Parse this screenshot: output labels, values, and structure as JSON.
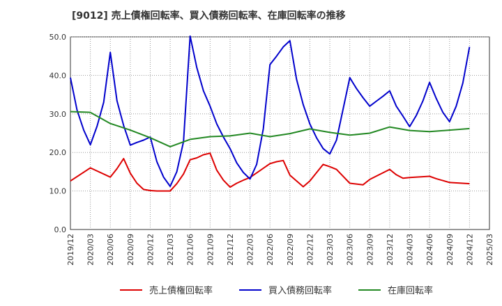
{
  "chart_data": {
    "type": "line",
    "title": "[9012]  売上債権回転率、買入債務回転率、在庫回転率の推移",
    "xlabel": "",
    "ylabel": "",
    "ylim": [
      0,
      50
    ],
    "yticks": [
      0,
      10,
      20,
      30,
      40,
      50
    ],
    "ytick_labels": [
      "0.0",
      "10.0",
      "20.0",
      "30.0",
      "40.0",
      "50.0"
    ],
    "xtick_labels": [
      "2019/12",
      "2020/03",
      "2020/06",
      "2020/09",
      "2020/12",
      "2021/03",
      "2021/06",
      "2021/09",
      "2021/12",
      "2022/03",
      "2022/06",
      "2022/09",
      "2022/12",
      "2023/03",
      "2023/06",
      "2023/09",
      "2023/12",
      "2024/03",
      "2024/06",
      "2024/09",
      "2024/12",
      "2025/03"
    ],
    "x_months_range": [
      0,
      63
    ],
    "grid": true,
    "legend_position": "bottom",
    "series": [
      {
        "name": "売上債権回転率",
        "color": "#dd0000",
        "x": [
          0,
          3,
          6,
          7,
          8,
          9,
          10,
          11,
          12,
          13,
          15,
          16,
          17,
          18,
          19,
          20,
          21,
          22,
          23,
          24,
          25,
          26,
          27,
          30,
          31,
          32,
          33,
          35,
          36,
          38,
          39,
          40,
          42,
          43,
          44,
          45,
          48,
          49,
          50,
          51,
          54,
          55,
          57,
          60
        ],
        "y": [
          12.6,
          16.0,
          13.6,
          15.8,
          18.4,
          14.6,
          12.0,
          10.4,
          10.1,
          10.0,
          10.0,
          11.9,
          14.4,
          18.1,
          18.6,
          19.4,
          19.8,
          15.4,
          12.8,
          11.0,
          12.0,
          12.8,
          13.5,
          17.1,
          17.6,
          17.9,
          14.1,
          11.1,
          12.6,
          16.9,
          16.3,
          15.6,
          12.0,
          11.8,
          11.6,
          13.0,
          15.6,
          14.2,
          13.3,
          13.5,
          13.8,
          13.2,
          12.2,
          11.9
        ]
      },
      {
        "name": "買入債務回転率",
        "color": "#0000cc",
        "x": [
          0,
          1,
          2,
          3,
          4,
          5,
          6,
          7,
          8,
          9,
          10,
          11,
          12,
          13,
          14,
          15,
          16,
          17,
          18,
          19,
          20,
          21,
          22,
          23,
          24,
          25,
          26,
          27,
          28,
          29,
          30,
          31,
          32,
          33,
          34,
          35,
          36,
          37,
          38,
          39,
          40,
          42,
          43,
          44,
          45,
          46,
          47,
          48,
          49,
          50,
          51,
          52,
          53,
          54,
          55,
          56,
          57,
          58,
          59,
          60
        ],
        "y": [
          39.4,
          31.0,
          25.8,
          22.0,
          26.8,
          33.0,
          46.0,
          33.4,
          27.0,
          21.9,
          22.6,
          23.2,
          24.0,
          17.6,
          13.6,
          11.2,
          15.0,
          22.8,
          50.2,
          42.0,
          36.0,
          32.0,
          27.4,
          24.0,
          21.0,
          17.3,
          14.8,
          13.1,
          16.9,
          26.2,
          42.8,
          45.0,
          47.4,
          49.0,
          39.0,
          32.4,
          27.4,
          23.8,
          21.0,
          19.6,
          23.2,
          39.4,
          36.6,
          34.2,
          32.0,
          33.3,
          34.6,
          36.0,
          32.0,
          29.4,
          26.7,
          29.6,
          33.4,
          38.2,
          34.0,
          30.4,
          28.0,
          32.0,
          38.0,
          47.4
        ]
      },
      {
        "name": "在庫回転率",
        "color": "#228822",
        "x": [
          0,
          3,
          6,
          9,
          12,
          15,
          18,
          21,
          24,
          27,
          30,
          33,
          36,
          39,
          42,
          45,
          48,
          51,
          54,
          57,
          60
        ],
        "y": [
          30.6,
          30.4,
          27.5,
          25.8,
          23.8,
          21.5,
          23.4,
          24.1,
          24.3,
          25.0,
          24.1,
          24.9,
          26.1,
          25.2,
          24.5,
          25.0,
          26.6,
          25.7,
          25.4,
          25.8,
          26.2
        ]
      }
    ]
  }
}
